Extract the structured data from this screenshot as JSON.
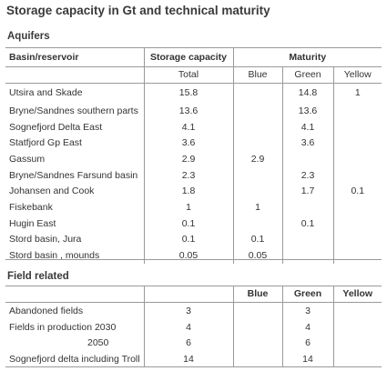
{
  "title": "Storage capacity in Gt and technical maturity",
  "aquifers": {
    "section_title": "Aquifers",
    "headers": {
      "basin": "Basin/reservoir",
      "storage": "Storage capacity",
      "maturity": "Maturity",
      "total": "Total",
      "blue": "Blue",
      "green": "Green",
      "yellow": "Yellow"
    },
    "rows": [
      {
        "name": "Utsira and Skade",
        "total": "15.8",
        "blue": "",
        "green": "14.8",
        "yellow": "1"
      },
      {
        "name": "Bryne/Sandnes southern parts",
        "total": "13.6",
        "blue": "",
        "green": "13.6",
        "yellow": ""
      },
      {
        "name": "Sognefjord Delta East",
        "total": "4.1",
        "blue": "",
        "green": "4.1",
        "yellow": ""
      },
      {
        "name": "Statfjord Gp East",
        "total": "3.6",
        "blue": "",
        "green": "3.6",
        "yellow": ""
      },
      {
        "name": "Gassum",
        "total": "2.9",
        "blue": "2.9",
        "green": "",
        "yellow": ""
      },
      {
        "name": "Bryne/Sandnes Farsund basin",
        "total": "2.3",
        "blue": "",
        "green": "2.3",
        "yellow": ""
      },
      {
        "name": "Johansen and Cook",
        "total": "1.8",
        "blue": "",
        "green": "1.7",
        "yellow": "0.1"
      },
      {
        "name": "Fiskebank",
        "total": "1",
        "blue": "1",
        "green": "",
        "yellow": ""
      },
      {
        "name": "Hugin East",
        "total": "0.1",
        "blue": "",
        "green": "0.1",
        "yellow": ""
      },
      {
        "name": "Stord basin, Jura",
        "total": "0.1",
        "blue": "0.1",
        "green": "",
        "yellow": ""
      },
      {
        "name": "Stord basin , mounds",
        "total": "0.05",
        "blue": "0.05",
        "green": "",
        "yellow": ""
      }
    ]
  },
  "field_related": {
    "section_title": "Field related",
    "headers": {
      "blue": "Blue",
      "green": "Green",
      "yellow": "Yellow"
    },
    "rows": [
      {
        "name": "Abandoned fields",
        "total": "3",
        "blue": "",
        "green": "3",
        "yellow": ""
      },
      {
        "name": "Fields in production 2030",
        "total": "4",
        "blue": "",
        "green": "4",
        "yellow": ""
      },
      {
        "name": "2050",
        "total": "6",
        "blue": "",
        "green": "6",
        "yellow": ""
      },
      {
        "name": "Sognefjord delta including Troll",
        "total": "14",
        "blue": "",
        "green": "14",
        "yellow": ""
      }
    ]
  }
}
